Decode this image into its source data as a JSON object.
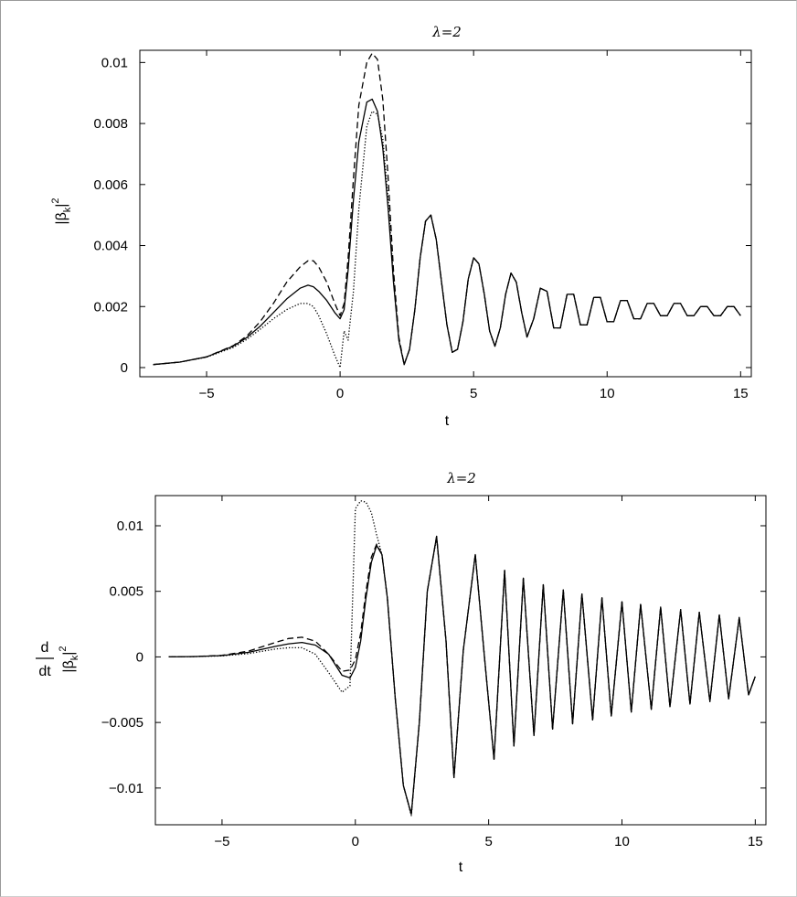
{
  "chart_data": [
    {
      "type": "line",
      "title": "λ=2",
      "xlabel": "t",
      "ylabel_main": "|β",
      "ylabel_sub": "k",
      "ylabel_sup": "2",
      "xlim": [
        -7.5,
        15.4
      ],
      "ylim": [
        -0.0003,
        0.0104
      ],
      "x_ticks": [
        -5,
        0,
        5,
        10,
        15
      ],
      "x_tick_labels": [
        "−5",
        "0",
        "5",
        "10",
        "15"
      ],
      "y_ticks": [
        0,
        0.002,
        0.004,
        0.006,
        0.008,
        0.01
      ],
      "y_tick_labels": [
        "0",
        "0.002",
        "0.004",
        "0.006",
        "0.008",
        "0.01"
      ],
      "grid": false,
      "x": [
        -7,
        -6,
        -5,
        -4,
        -3.5,
        -3,
        -2.5,
        -2,
        -1.5,
        -1.2,
        -1,
        -0.8,
        -0.5,
        -0.2,
        0,
        0.15,
        0.3,
        0.5,
        0.7,
        1,
        1.2,
        1.4,
        1.6,
        1.8,
        2,
        2.2,
        2.4,
        2.6,
        2.8,
        3,
        3.2,
        3.4,
        3.6,
        3.8,
        4,
        4.2,
        4.4,
        4.6,
        4.8,
        5,
        5.2,
        5.4,
        5.6,
        5.8,
        6,
        6.2,
        6.4,
        6.6,
        6.8,
        7,
        7.25,
        7.5,
        7.75,
        8,
        8.25,
        8.5,
        8.75,
        9,
        9.25,
        9.5,
        9.75,
        10,
        10.25,
        10.5,
        10.75,
        11,
        11.25,
        11.5,
        11.75,
        12,
        12.25,
        12.5,
        12.75,
        13,
        13.25,
        13.5,
        13.75,
        14,
        14.25,
        14.5,
        14.75,
        15
      ],
      "series": [
        {
          "style": "solid",
          "values": [
            0.0001,
            0.00018,
            0.00035,
            0.0007,
            0.00098,
            0.00135,
            0.0018,
            0.00225,
            0.0026,
            0.0027,
            0.00265,
            0.0025,
            0.0022,
            0.0018,
            0.0016,
            0.0019,
            0.0032,
            0.0055,
            0.0074,
            0.0087,
            0.0088,
            0.0084,
            0.0072,
            0.0052,
            0.0028,
            0.0009,
            0.0001,
            0.0006,
            0.0019,
            0.0036,
            0.0048,
            0.005,
            0.0042,
            0.0028,
            0.0014,
            0.0005,
            0.0006,
            0.0015,
            0.0029,
            0.0036,
            0.0034,
            0.0024,
            0.0012,
            0.0007,
            0.0013,
            0.0024,
            0.0031,
            0.0028,
            0.0018,
            0.001,
            0.0016,
            0.0026,
            0.0025,
            0.0013,
            0.0013,
            0.0024,
            0.0024,
            0.0014,
            0.0014,
            0.0023,
            0.0023,
            0.0015,
            0.0015,
            0.0022,
            0.0022,
            0.0016,
            0.0016,
            0.0021,
            0.0021,
            0.0017,
            0.0017,
            0.0021,
            0.0021,
            0.0017,
            0.0017,
            0.002,
            0.002,
            0.0017,
            0.0017,
            0.002,
            0.002,
            0.0017
          ]
        },
        {
          "style": "dashed",
          "values": [
            0.0001,
            0.00018,
            0.00035,
            0.00072,
            0.00103,
            0.0015,
            0.0021,
            0.0028,
            0.0033,
            0.0035,
            0.0035,
            0.0033,
            0.0028,
            0.0021,
            0.0017,
            0.0021,
            0.0036,
            0.0062,
            0.0086,
            0.01,
            0.0103,
            0.0101,
            0.0088,
            0.0062,
            0.0032,
            0.001,
            0.0001,
            0.0006,
            0.0019,
            0.0036,
            0.0048,
            0.005,
            0.0042,
            0.0028,
            0.0014,
            0.0005,
            0.0006,
            0.0015,
            0.0029,
            0.0036,
            0.0034,
            0.0024,
            0.0012,
            0.0007,
            0.0013,
            0.0024,
            0.0031,
            0.0028,
            0.0018,
            0.001,
            0.0016,
            0.0026,
            0.0025,
            0.0013,
            0.0013,
            0.0024,
            0.0024,
            0.0014,
            0.0014,
            0.0023,
            0.0023,
            0.0015,
            0.0015,
            0.0022,
            0.0022,
            0.0016,
            0.0016,
            0.0021,
            0.0021,
            0.0017,
            0.0017,
            0.0021,
            0.0021,
            0.0017,
            0.0017,
            0.002,
            0.002,
            0.0017,
            0.0017,
            0.002,
            0.002,
            0.0017
          ]
        },
        {
          "style": "dotted",
          "values": [
            0.0001,
            0.00018,
            0.00034,
            0.00066,
            0.00092,
            0.00125,
            0.0016,
            0.0019,
            0.0021,
            0.0021,
            0.002,
            0.0017,
            0.0011,
            0.0004,
            0.0,
            0.0012,
            0.0009,
            0.0025,
            0.0052,
            0.0079,
            0.0084,
            0.0083,
            0.0075,
            0.0055,
            0.0029,
            0.0009,
            0.0001,
            0.0006,
            0.0019,
            0.0036,
            0.0048,
            0.005,
            0.0042,
            0.0028,
            0.0014,
            0.0005,
            0.0006,
            0.0015,
            0.0029,
            0.0036,
            0.0034,
            0.0024,
            0.0012,
            0.0007,
            0.0013,
            0.0024,
            0.0031,
            0.0028,
            0.0018,
            0.001,
            0.0016,
            0.0026,
            0.0025,
            0.0013,
            0.0013,
            0.0024,
            0.0024,
            0.0014,
            0.0014,
            0.0023,
            0.0023,
            0.0015,
            0.0015,
            0.0022,
            0.0022,
            0.0016,
            0.0016,
            0.0021,
            0.0021,
            0.0017,
            0.0017,
            0.0021,
            0.0021,
            0.0017,
            0.0017,
            0.002,
            0.002,
            0.0017,
            0.0017,
            0.002,
            0.002,
            0.0017
          ]
        }
      ]
    },
    {
      "type": "line",
      "title": "λ=2",
      "xlabel": "t",
      "ylabel_prefix_top": "d",
      "ylabel_prefix_bottom": "dt",
      "ylabel_main": "|β",
      "ylabel_sub": "k",
      "ylabel_sup": "2",
      "xlim": [
        -7.5,
        15.4
      ],
      "ylim": [
        -0.0128,
        0.0123
      ],
      "x_ticks": [
        -5,
        0,
        5,
        10,
        15
      ],
      "x_tick_labels": [
        "−5",
        "0",
        "5",
        "10",
        "15"
      ],
      "y_ticks": [
        -0.01,
        -0.005,
        0,
        0.005,
        0.01
      ],
      "y_tick_labels": [
        "−0.01",
        "−0.005",
        "0",
        "0.005",
        "0.01"
      ],
      "grid": false,
      "x": [
        -7,
        -6,
        -5,
        -4,
        -3,
        -2.5,
        -2,
        -1.5,
        -1,
        -0.5,
        -0.2,
        0,
        0.2,
        0.4,
        0.6,
        0.8,
        1,
        1.2,
        1.5,
        1.8,
        2.1,
        2.4,
        2.7,
        3.05,
        3.4,
        3.7,
        4.05,
        4.5,
        4.85,
        5.2,
        5.6,
        5.95,
        6.3,
        6.7,
        7.05,
        7.4,
        7.8,
        8.15,
        8.5,
        8.9,
        9.25,
        9.6,
        10,
        10.35,
        10.7,
        11.1,
        11.45,
        11.8,
        12.2,
        12.55,
        12.9,
        13.3,
        13.65,
        14,
        14.4,
        14.75,
        15
      ],
      "series": [
        {
          "style": "solid",
          "values": [
            0.0,
            3e-05,
            0.0001,
            0.00035,
            0.0008,
            0.001,
            0.0011,
            0.0009,
            0.0002,
            -0.0014,
            -0.0016,
            -0.0008,
            0.0012,
            0.0045,
            0.0072,
            0.0085,
            0.0078,
            0.0045,
            -0.0032,
            -0.0098,
            -0.012,
            -0.005,
            0.005,
            0.0092,
            0.0012,
            -0.0092,
            0.0005,
            0.0078,
            -0.0002,
            -0.0078,
            0.0066,
            -0.0068,
            0.006,
            -0.006,
            0.0055,
            -0.0055,
            0.0051,
            -0.0051,
            0.0048,
            -0.0048,
            0.0045,
            -0.0045,
            0.0042,
            -0.0042,
            0.004,
            -0.004,
            0.0038,
            -0.0038,
            0.0036,
            -0.0036,
            0.0034,
            -0.0034,
            0.0032,
            -0.0032,
            0.003,
            -0.0029,
            -0.0015
          ]
        },
        {
          "style": "dashed",
          "values": [
            0.0,
            3e-05,
            0.00012,
            0.00045,
            0.0011,
            0.0014,
            0.0015,
            0.0012,
            0.0002,
            -0.0011,
            -0.001,
            -0.0002,
            0.0018,
            0.005,
            0.0076,
            0.0086,
            0.0078,
            0.0045,
            -0.0032,
            -0.0098,
            -0.012,
            -0.005,
            0.005,
            0.0092,
            0.0012,
            -0.0092,
            0.0005,
            0.0078,
            -0.0002,
            -0.0078,
            0.0066,
            -0.0068,
            0.006,
            -0.006,
            0.0055,
            -0.0055,
            0.0051,
            -0.0051,
            0.0048,
            -0.0048,
            0.0045,
            -0.0045,
            0.0042,
            -0.0042,
            0.004,
            -0.004,
            0.0038,
            -0.0038,
            0.0036,
            -0.0036,
            0.0034,
            -0.0034,
            0.0032,
            -0.0032,
            0.003,
            -0.0029,
            -0.0015
          ]
        },
        {
          "style": "dotted",
          "values": [
            0.0,
            2e-05,
            8e-05,
            0.00025,
            0.0006,
            0.0007,
            0.0007,
            0.0002,
            -0.0012,
            -0.0027,
            -0.0022,
            0.0113,
            0.0119,
            0.0118,
            0.011,
            0.0093,
            0.0078,
            0.0045,
            -0.0032,
            -0.0098,
            -0.0121,
            -0.005,
            0.005,
            0.0091,
            0.0012,
            -0.0092,
            0.0005,
            0.0078,
            -0.0002,
            -0.0078,
            0.0066,
            -0.0068,
            0.006,
            -0.006,
            0.0055,
            -0.0055,
            0.0051,
            -0.0051,
            0.0048,
            -0.0048,
            0.0045,
            -0.0045,
            0.0042,
            -0.0042,
            0.004,
            -0.004,
            0.0038,
            -0.0038,
            0.0036,
            -0.0036,
            0.0034,
            -0.0034,
            0.0032,
            -0.0032,
            0.003,
            -0.0029,
            -0.0015
          ]
        }
      ]
    }
  ]
}
